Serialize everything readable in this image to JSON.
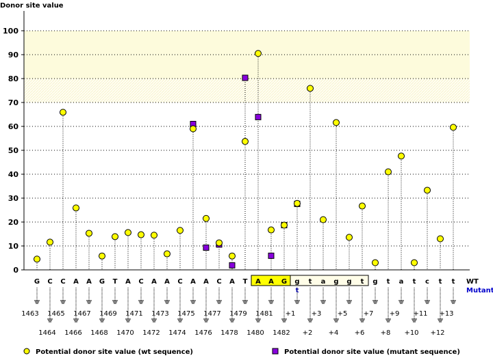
{
  "chart_data": {
    "type": "scatter",
    "title": "",
    "ylabel": "Donor site value",
    "ylim": [
      0,
      100
    ],
    "yticks": [
      0,
      10,
      20,
      30,
      40,
      50,
      60,
      70,
      80,
      90,
      100
    ],
    "grid": true,
    "bands": [
      {
        "from": 80,
        "to": 100,
        "color": "#fdfbdc"
      },
      {
        "from": 70,
        "to": 80,
        "color": "#fefdf0"
      }
    ],
    "positions": [
      "1463",
      "1464",
      "1465",
      "1466",
      "1467",
      "1468",
      "1469",
      "1470",
      "1471",
      "1472",
      "1473",
      "1474",
      "1475",
      "1476",
      "1477",
      "1478",
      "1479",
      "1480",
      "1481",
      "1482",
      "+1",
      "+2",
      "+3",
      "+4",
      "+5",
      "+6",
      "+7",
      "+8",
      "+9",
      "+10",
      "+11",
      "+12",
      "+13"
    ],
    "wt_sequence": [
      "G",
      "C",
      "C",
      "A",
      "A",
      "G",
      "T",
      "A",
      "C",
      "A",
      "A",
      "C",
      "A",
      "A",
      "C",
      "A",
      "T",
      "A",
      "A",
      "G",
      "g",
      "t",
      "a",
      "g",
      "g",
      "t",
      "g",
      "t",
      "a",
      "t",
      "c",
      "t",
      "t"
    ],
    "mutant_sequence": [
      "",
      "",
      "",
      "",
      "",
      "",
      "",
      "",
      "",
      "",
      "",
      "",
      "",
      "",
      "",
      "",
      "",
      "",
      "",
      "",
      "t",
      "",
      "",
      "",
      "",
      "",
      "",
      "",
      "",
      "",
      "",
      "",
      ""
    ],
    "exon_highlight": [
      "1480",
      "1482"
    ],
    "intron_box": [
      "+1",
      "+6"
    ],
    "row_labels": {
      "wt": "WT",
      "mutant": "Mutant"
    },
    "series": [
      {
        "name": "Potential donor site value (wt sequence)",
        "marker": "circle",
        "color": "#ffff00",
        "values": [
          4.5,
          11.6,
          65.9,
          25.9,
          15.3,
          5.8,
          13.9,
          15.6,
          14.7,
          14.5,
          6.7,
          16.5,
          59.0,
          21.5,
          11.3,
          5.8,
          53.7,
          90.5,
          16.7,
          18.7,
          27.8,
          75.9,
          21.0,
          61.6,
          13.6,
          26.7,
          3.0,
          41.0,
          47.6,
          3.0,
          33.3,
          13.0,
          59.6
        ]
      },
      {
        "name": "Potential donor site value (mutant sequence)",
        "marker": "square",
        "color": "#8800dd",
        "values": [
          null,
          null,
          null,
          null,
          null,
          null,
          null,
          null,
          null,
          null,
          null,
          null,
          61.0,
          9.3,
          10.6,
          1.9,
          80.3,
          63.9,
          5.9,
          18.7,
          27.6,
          null,
          null,
          null,
          null,
          null,
          null,
          null,
          null,
          null,
          null,
          null,
          null
        ]
      }
    ],
    "legend": "bottom"
  },
  "colors": {
    "mutant_text": "#0000cc",
    "highlight": "#ffff00"
  }
}
